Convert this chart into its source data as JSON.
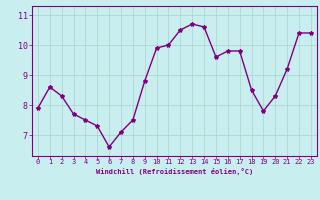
{
  "x": [
    0,
    1,
    2,
    3,
    4,
    5,
    6,
    7,
    8,
    9,
    10,
    11,
    12,
    13,
    14,
    15,
    16,
    17,
    18,
    19,
    20,
    21,
    22,
    23
  ],
  "y": [
    7.9,
    8.6,
    8.3,
    7.7,
    7.5,
    7.3,
    6.6,
    7.1,
    7.5,
    8.8,
    9.9,
    10.0,
    10.5,
    10.7,
    10.6,
    9.6,
    9.8,
    9.8,
    8.5,
    7.8,
    8.3,
    9.2,
    10.4,
    10.4
  ],
  "line_color": "#800080",
  "marker": "*",
  "marker_size": 3,
  "bg_color": "#c8eef0",
  "grid_color": "#aad4cc",
  "xlabel": "Windchill (Refroidissement éolien,°C)",
  "xlabel_color": "#800080",
  "tick_color": "#800080",
  "spine_color": "#800080",
  "ylim": [
    6.3,
    11.3
  ],
  "xlim": [
    -0.5,
    23.5
  ],
  "yticks": [
    7,
    8,
    9,
    10,
    11
  ],
  "xtick_labels": [
    "0",
    "1",
    "2",
    "3",
    "4",
    "5",
    "6",
    "7",
    "8",
    "9",
    "10",
    "11",
    "12",
    "13",
    "14",
    "15",
    "16",
    "17",
    "18",
    "19",
    "20",
    "21",
    "22",
    "23"
  ],
  "tick_fontsize": 5,
  "xlabel_fontsize": 5,
  "linewidth": 1.0
}
